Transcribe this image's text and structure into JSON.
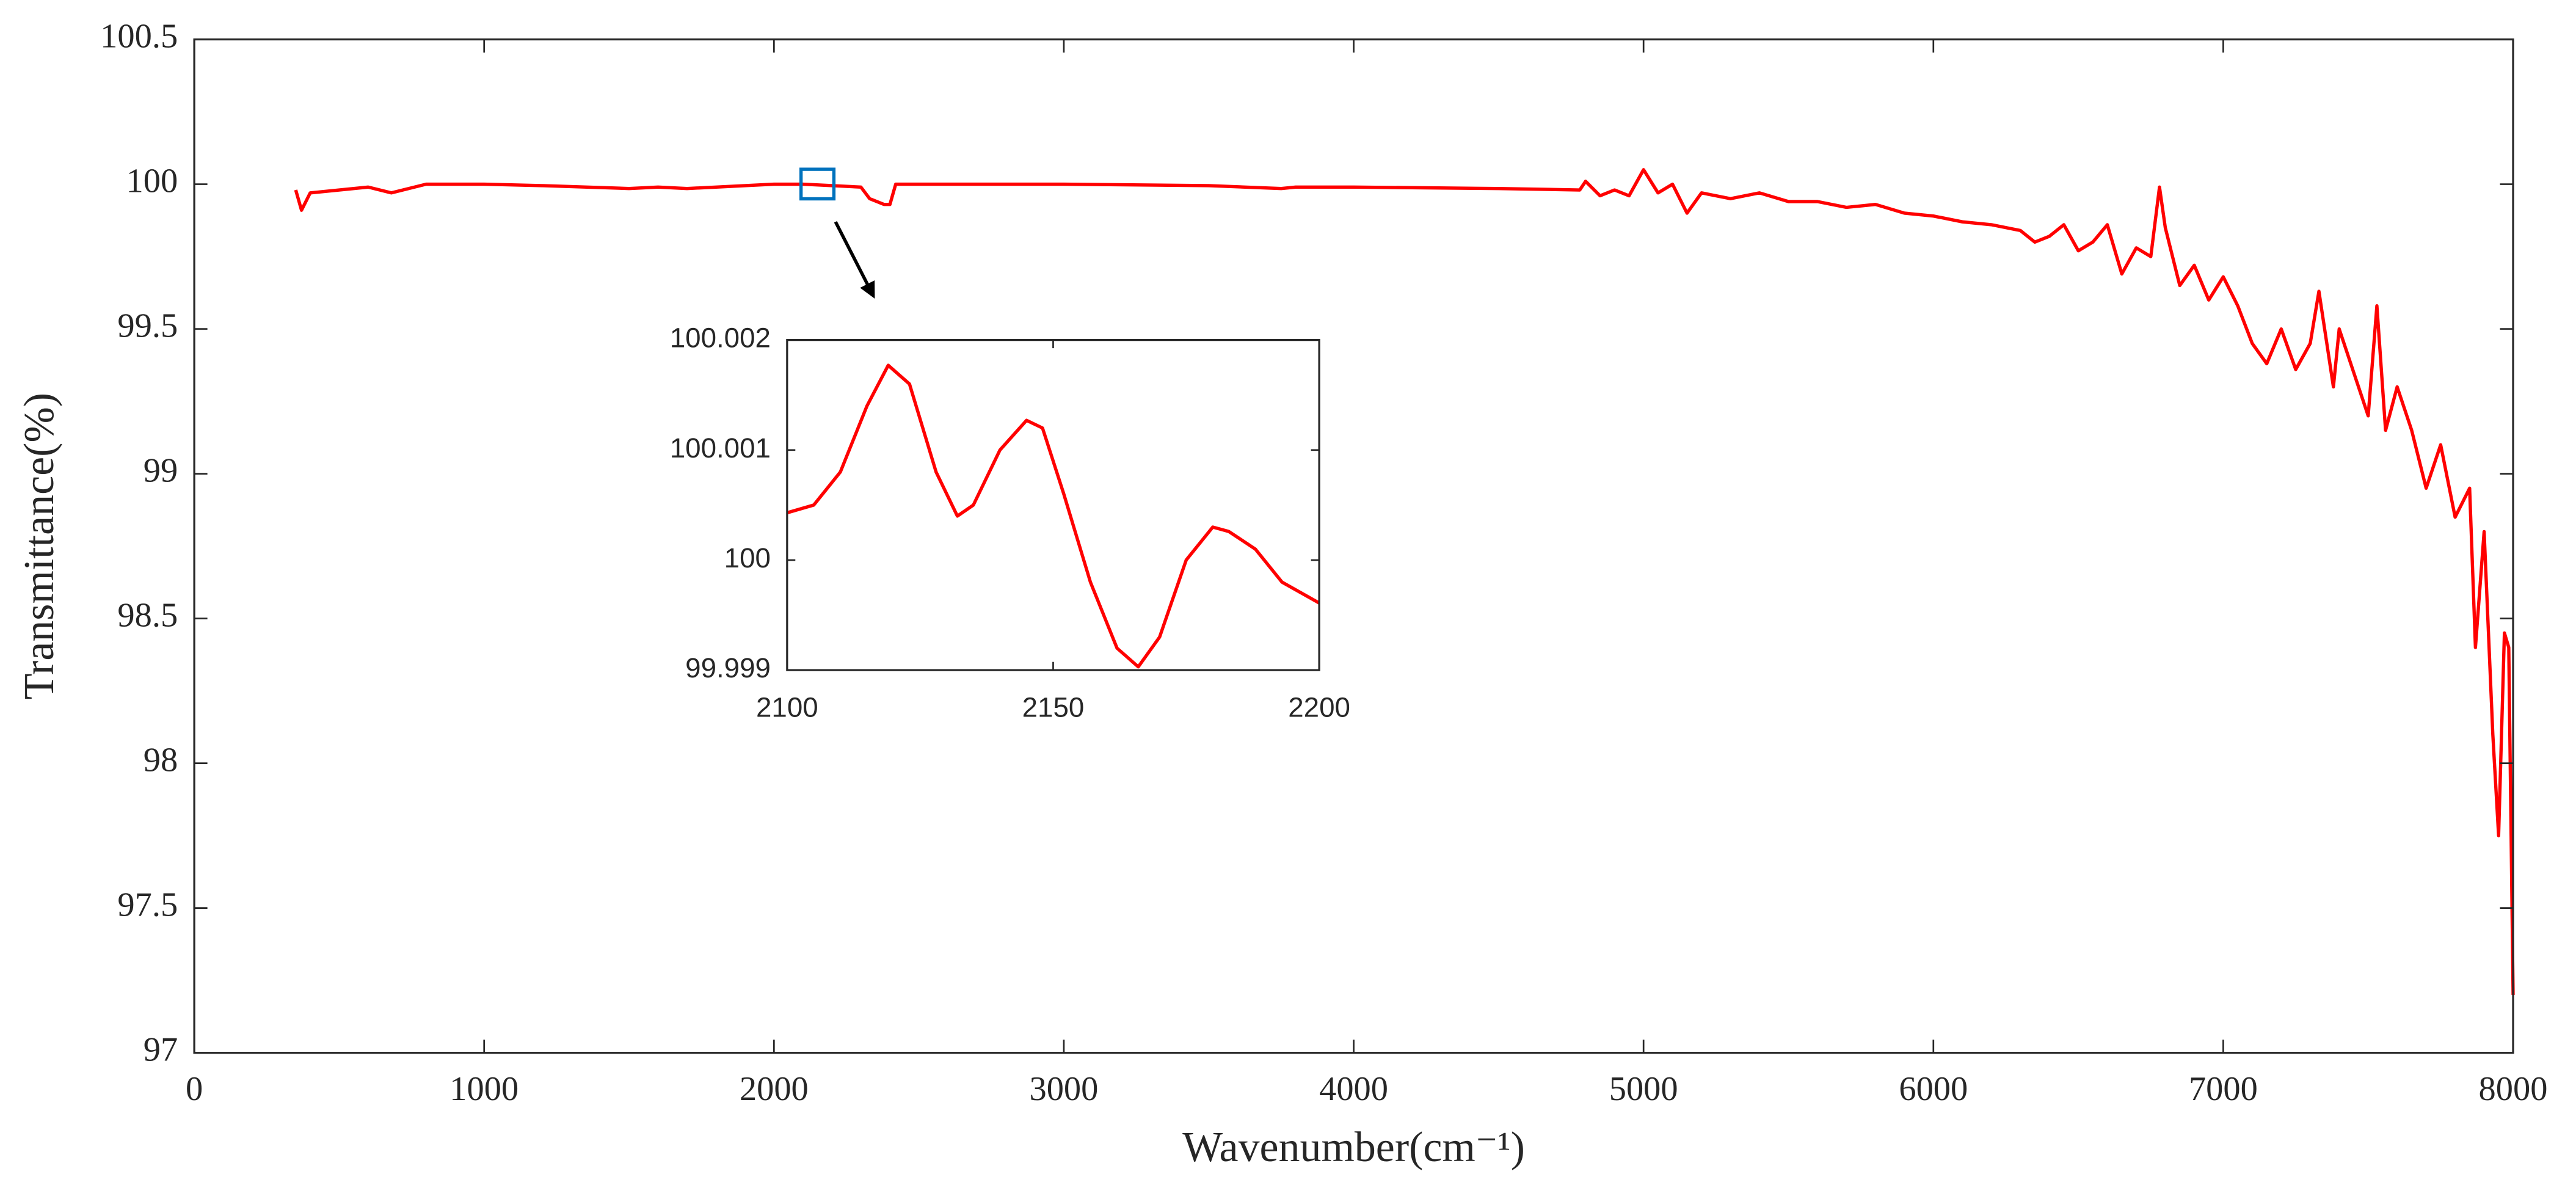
{
  "chart_data": [
    {
      "type": "line",
      "color": "#ff0000",
      "xlabel": "Wavenumber(cm⁻¹)",
      "ylabel": "Transmittance(%)",
      "xlim": [
        0,
        8000
      ],
      "ylim": [
        97,
        100.5
      ],
      "xticks": [
        0,
        1000,
        2000,
        3000,
        4000,
        5000,
        6000,
        7000,
        8000
      ],
      "yticks": [
        97,
        97.5,
        98,
        98.5,
        99,
        99.5,
        100,
        100.5
      ],
      "x": [
        350,
        370,
        400,
        500,
        600,
        680,
        800,
        1000,
        1200,
        1500,
        1600,
        1700,
        2000,
        2100,
        2300,
        2330,
        2380,
        2400,
        2420,
        3000,
        3500,
        3750,
        3800,
        4000,
        4500,
        4780,
        4800,
        4850,
        4900,
        4950,
        5000,
        5050,
        5100,
        5150,
        5200,
        5300,
        5400,
        5500,
        5600,
        5700,
        5800,
        5900,
        6000,
        6100,
        6200,
        6300,
        6350,
        6400,
        6450,
        6500,
        6550,
        6600,
        6650,
        6700,
        6750,
        6780,
        6800,
        6850,
        6900,
        6950,
        7000,
        7050,
        7100,
        7150,
        7200,
        7250,
        7300,
        7330,
        7380,
        7400,
        7450,
        7500,
        7530,
        7560,
        7600,
        7650,
        7700,
        7750,
        7800,
        7850,
        7870,
        7900,
        7930,
        7950,
        7970,
        7985,
        8000
      ],
      "values": [
        99.98,
        99.91,
        99.97,
        99.98,
        99.99,
        99.97,
        100.0,
        100.0,
        99.995,
        99.985,
        99.99,
        99.985,
        100.0,
        100.0,
        99.99,
        99.95,
        99.93,
        99.93,
        100.0,
        100.0,
        99.995,
        99.985,
        99.99,
        99.99,
        99.985,
        99.98,
        100.01,
        99.96,
        99.98,
        99.96,
        100.05,
        99.97,
        100.0,
        99.9,
        99.97,
        99.95,
        99.97,
        99.94,
        99.94,
        99.92,
        99.93,
        99.9,
        99.89,
        99.87,
        99.86,
        99.84,
        99.8,
        99.82,
        99.86,
        99.77,
        99.8,
        99.86,
        99.69,
        99.78,
        99.75,
        99.99,
        99.85,
        99.65,
        99.72,
        99.6,
        99.68,
        99.58,
        99.45,
        99.38,
        99.5,
        99.36,
        99.45,
        99.63,
        99.3,
        99.5,
        99.35,
        99.2,
        99.58,
        99.15,
        99.3,
        99.15,
        98.95,
        99.1,
        98.85,
        98.95,
        98.4,
        98.8,
        98.1,
        97.75,
        98.45,
        98.4,
        97.2
      ]
    },
    {
      "type": "line",
      "color": "#ff0000",
      "xlim": [
        2100,
        2200
      ],
      "ylim": [
        99.999,
        100.002
      ],
      "xticks": [
        2100,
        2150,
        2200
      ],
      "yticks": [
        99.999,
        100,
        100.001,
        100.002
      ],
      "x": [
        2100,
        2105,
        2110,
        2115,
        2119,
        2123,
        2128,
        2132,
        2135,
        2140,
        2145,
        2148,
        2152,
        2157,
        2162,
        2166,
        2170,
        2175,
        2180,
        2183,
        2188,
        2193,
        2200
      ],
      "values": [
        100.00043,
        100.0005,
        100.0008,
        100.0014,
        100.00177,
        100.0016,
        100.0008,
        100.0004,
        100.0005,
        100.001,
        100.00127,
        100.0012,
        100.0006,
        99.9998,
        99.9992,
        99.99903,
        99.9993,
        100.0,
        100.0003,
        100.00026,
        100.0001,
        99.9998,
        99.99961
      ]
    }
  ]
}
